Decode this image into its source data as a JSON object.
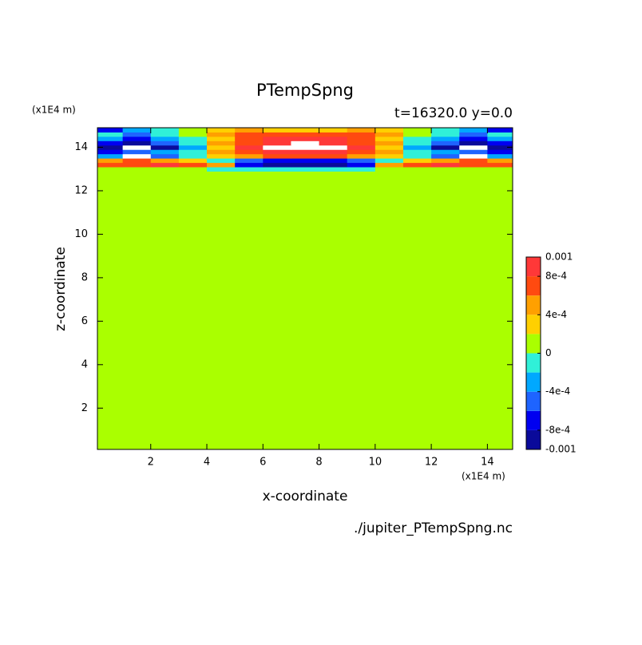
{
  "chart_data": {
    "type": "contour",
    "title": "PTempSpng",
    "subtitle": "t=16320.0 y=0.0",
    "x_label": "x-coordinate",
    "y_label": "z-coordinate",
    "x_units": "(x1E4 m)",
    "y_units": "(x1E4 m)",
    "source": "./jupiter_PTempSpng.nc",
    "xlim": [
      0.1,
      14.9
    ],
    "ylim": [
      0.1,
      14.9
    ],
    "xticks": [
      2,
      4,
      6,
      8,
      10,
      12,
      14
    ],
    "yticks": [
      2,
      4,
      6,
      8,
      10,
      12,
      14
    ],
    "x": [
      0.1,
      1,
      2,
      3,
      4,
      5,
      6,
      7,
      8,
      9,
      10,
      11,
      12,
      13,
      14,
      14.9
    ],
    "y": [
      0.1,
      12.9,
      13.1,
      13.3,
      13.5,
      13.7,
      13.9,
      14.1,
      14.3,
      14.5,
      14.7,
      14.9
    ],
    "z": [
      [
        0.0001,
        0.0001,
        0.0001,
        0.0001,
        0.0001,
        0.0001,
        0.0001,
        0.0001,
        0.0001,
        0.0001,
        0.0001,
        0.0001,
        0.0001,
        0.0001,
        0.0001
      ],
      [
        0.0001,
        0.0001,
        0.0001,
        0.0001,
        -0.0001,
        -0.0001,
        -0.0001,
        -0.0001,
        -0.0001,
        -0.0001,
        0.0001,
        0.0001,
        0.0001,
        0.0001,
        0.0001
      ],
      [
        0.0007,
        0.0007,
        0.0009,
        0.0007,
        0.0005,
        -0.0007,
        -0.0009,
        -0.0009,
        -0.0009,
        -0.0007,
        0.0005,
        0.0007,
        0.0009,
        0.0007,
        0.0007
      ],
      [
        0.0005,
        0.0007,
        0.0005,
        0.0003,
        -0.0001,
        -0.0005,
        -0.0007,
        -0.0007,
        -0.0007,
        -0.0005,
        -0.0001,
        0.0003,
        0.0005,
        0.0007,
        0.0005
      ],
      [
        -0.0003,
        0.0011,
        -0.0005,
        -0.0001,
        0.0003,
        0.0005,
        0.0007,
        0.0007,
        0.0007,
        0.0005,
        0.0003,
        -0.0001,
        -0.0005,
        0.0011,
        -0.0003
      ],
      [
        -0.0007,
        -0.0005,
        -0.0003,
        -0.0001,
        0.0005,
        0.0007,
        0.0009,
        0.0009,
        0.0009,
        0.0007,
        0.0005,
        -0.0001,
        -0.0003,
        -0.0005,
        -0.0007
      ],
      [
        -0.0009,
        0.0011,
        -0.0009,
        -0.0003,
        0.0003,
        0.0009,
        0.0011,
        0.0011,
        0.0011,
        0.0009,
        0.0003,
        -0.0003,
        -0.0009,
        0.0011,
        -0.0009
      ],
      [
        -0.0007,
        -0.0009,
        -0.0005,
        -0.0001,
        0.0005,
        0.0007,
        0.0009,
        0.0011,
        0.0009,
        0.0007,
        0.0005,
        -0.0001,
        -0.0005,
        -0.0009,
        -0.0007
      ],
      [
        -0.0003,
        -0.0007,
        -0.0003,
        -0.0001,
        0.0003,
        0.0007,
        0.0009,
        0.0009,
        0.0009,
        0.0007,
        0.0003,
        -0.0001,
        -0.0003,
        -0.0007,
        -0.0003
      ],
      [
        -0.0001,
        -0.0005,
        -0.0001,
        0.0001,
        0.0005,
        0.0007,
        0.0007,
        0.0007,
        0.0007,
        0.0007,
        0.0005,
        0.0001,
        -0.0001,
        -0.0005,
        -0.0001
      ],
      [
        -0.0007,
        -0.0003,
        -0.0001,
        0.0001,
        0.0003,
        0.0005,
        0.0003,
        0.0003,
        0.0003,
        0.0005,
        0.0003,
        0.0001,
        -0.0001,
        -0.0003,
        -0.0007
      ]
    ],
    "levels": [
      -0.001,
      -0.0008,
      -0.0006,
      -0.0004,
      -0.0002,
      0,
      0.0002,
      0.0004,
      0.0006,
      0.0008,
      0.001
    ],
    "colors": [
      "#0a0a9a",
      "#0000f0",
      "#1e64ff",
      "#00a8ff",
      "#30f0d8",
      "#aaff00",
      "#ffd000",
      "#ffa000",
      "#ff4a10",
      "#ff3838"
    ],
    "out_of_range_color": "#ffffff",
    "colorbar_ticks": [
      -0.001,
      {
        "value": -0.0008,
        "label": "-8e-4"
      },
      {
        "value": -0.0004,
        "label": "-4e-4"
      },
      0,
      {
        "value": 0.0004,
        "label": "4e-4"
      },
      {
        "value": 0.0008,
        "label": "8e-4"
      },
      0.001
    ]
  }
}
